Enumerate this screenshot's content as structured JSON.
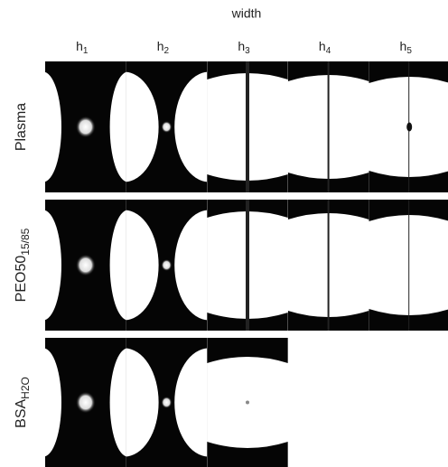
{
  "header": "width",
  "columns": [
    {
      "base": "h",
      "sub": "1"
    },
    {
      "base": "h",
      "sub": "2"
    },
    {
      "base": "h",
      "sub": "3"
    },
    {
      "base": "h",
      "sub": "4"
    },
    {
      "base": "h",
      "sub": "5"
    }
  ],
  "rows": [
    {
      "label": "Plasma"
    },
    {
      "label": "PEO50",
      "sub": "15/85"
    },
    {
      "label": "BSA",
      "sub": "H2O"
    }
  ]
}
